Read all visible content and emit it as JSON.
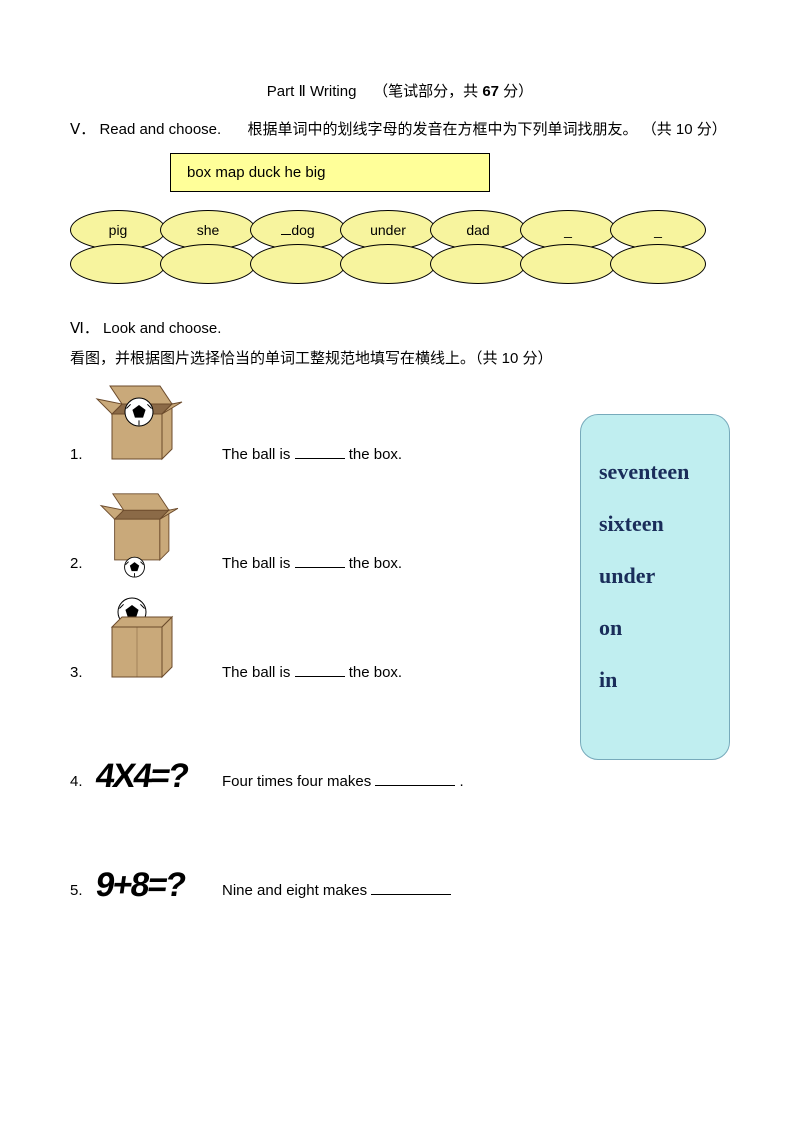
{
  "title": {
    "part": "Part",
    "roman": "Ⅱ",
    "label": "Writing",
    "paren_open": "（笔试部分，共",
    "points": "67",
    "paren_close": "分）"
  },
  "section5": {
    "roman": "Ⅴ．",
    "heading": "Read and choose.",
    "instr": "根据单词中的划线字母的发音在方框中为下列单词找朋友。 （共 10 分）",
    "word_box": "box   map   duck   he   big",
    "ovals_top": [
      "pig",
      "she",
      "dog",
      "under",
      "dad",
      "_",
      "_"
    ],
    "ovals_bottom_count": 7,
    "underline_indices": [
      2
    ]
  },
  "section6": {
    "roman": "Ⅵ．",
    "heading": "Look  and  choose.",
    "instr": "看图，并根据图片选择恰当的单词工整规范地填写在横线上。（共 10 分）",
    "items": [
      {
        "n": "1.",
        "pre": "The ball is",
        "post": "the box.",
        "img": "box-ball-in"
      },
      {
        "n": "2.",
        "pre": "The ball is",
        "post": "the box.",
        "img": "box-ball-under"
      },
      {
        "n": "3.",
        "pre": "The ball is",
        "post": "the box.",
        "img": "box-ball-on"
      },
      {
        "n": "4.",
        "pre": "Four times four makes",
        "post": ".",
        "img": "eq-4x4"
      },
      {
        "n": "5.",
        "pre": "Nine and eight makes",
        "post": "",
        "img": "eq-9+8"
      }
    ],
    "answer_box": [
      "seventeen",
      "sixteen",
      "under",
      "on",
      "in"
    ],
    "eq1": "4X4=?",
    "eq2": "9+8=?",
    "colors": {
      "box_fill": "#c9a97a",
      "box_stroke": "#6b4a2b",
      "box_inner": "#8b6a47",
      "ball_white": "#ffffff",
      "ball_black": "#000000"
    }
  }
}
